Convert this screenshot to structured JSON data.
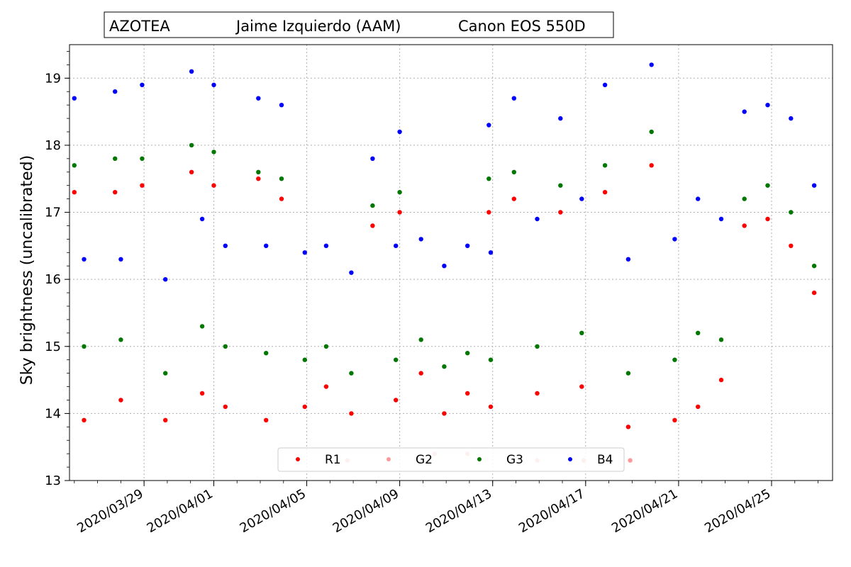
{
  "chart_data": {
    "type": "scatter",
    "title_parts": [
      "AZOTEA",
      "Jaime Izquierdo  (AAM)",
      "Canon EOS 550D"
    ],
    "xlabel": "",
    "ylabel": "Sky brightness (uncalibrated)",
    "x_tick_labels": [
      "2020/03/29",
      "2020/04/01",
      "2020/04/05",
      "2020/04/09",
      "2020/04/13",
      "2020/04/17",
      "2020/04/21",
      "2020/04/25"
    ],
    "x_ticks": [
      "2020-03-29",
      "2020-04-01",
      "2020-04-05",
      "2020-04-09",
      "2020-04-13",
      "2020-04-17",
      "2020-04-21",
      "2020-04-25"
    ],
    "xlim": [
      "2020-03-25T19:00",
      "2020-04-27T15:00"
    ],
    "ylim": [
      13,
      19.5
    ],
    "y_ticks": [
      13,
      14,
      15,
      16,
      17,
      18,
      19
    ],
    "grid": true,
    "legend_position": "bottom-center",
    "series": [
      {
        "name": "R1",
        "color": "#ff0000",
        "values": [
          [
            "2020-03-26T00:00",
            17.3
          ],
          [
            "2020-03-26T10:00",
            13.9
          ],
          [
            "2020-03-27T18:00",
            17.3
          ],
          [
            "2020-03-28T00:00",
            14.2
          ],
          [
            "2020-03-28T22:00",
            17.4
          ],
          [
            "2020-03-29T22:00",
            13.9
          ],
          [
            "2020-03-31T01:00",
            17.6
          ],
          [
            "2020-03-31T12:00",
            14.3
          ],
          [
            "2020-04-01T00:00",
            17.4
          ],
          [
            "2020-04-01T12:00",
            14.1
          ],
          [
            "2020-04-02T22:00",
            17.5
          ],
          [
            "2020-04-03T06:00",
            13.9
          ],
          [
            "2020-04-03T22:00",
            17.2
          ],
          [
            "2020-04-04T22:00",
            14.1
          ],
          [
            "2020-04-05T20:00",
            14.4
          ],
          [
            "2020-04-06T22:00",
            14.0
          ],
          [
            "2020-04-07T20:00",
            16.8
          ],
          [
            "2020-04-08T20:00",
            14.2
          ],
          [
            "2020-04-09T00:00",
            17.0
          ],
          [
            "2020-04-09T22:00",
            14.6
          ],
          [
            "2020-04-10T22:00",
            14.0
          ],
          [
            "2020-04-11T22:00",
            14.3
          ],
          [
            "2020-04-12T20:00",
            17.0
          ],
          [
            "2020-04-12T22:00",
            14.1
          ],
          [
            "2020-04-13T22:00",
            17.2
          ],
          [
            "2020-04-14T22:00",
            14.3
          ],
          [
            "2020-04-15T22:00",
            17.0
          ],
          [
            "2020-04-16T20:00",
            14.4
          ],
          [
            "2020-04-17T20:00",
            17.3
          ],
          [
            "2020-04-18T20:00",
            13.8
          ],
          [
            "2020-04-19T20:00",
            17.7
          ],
          [
            "2020-04-20T20:00",
            13.9
          ],
          [
            "2020-04-21T20:00",
            14.1
          ],
          [
            "2020-04-22T20:00",
            14.5
          ],
          [
            "2020-04-23T20:00",
            16.8
          ],
          [
            "2020-04-24T20:00",
            16.9
          ],
          [
            "2020-04-25T20:00",
            16.5
          ],
          [
            "2020-04-26T20:00",
            15.8
          ]
        ]
      },
      {
        "name": "G2",
        "color": "#ff9999",
        "values": [
          [
            "2020-04-06T18:00",
            13.3
          ],
          [
            "2020-04-10T12:00",
            13.4
          ],
          [
            "2020-04-11T22:00",
            13.4
          ],
          [
            "2020-04-14T22:00",
            13.3
          ],
          [
            "2020-04-16T22:00",
            13.3
          ],
          [
            "2020-04-18T22:00",
            13.3
          ]
        ]
      },
      {
        "name": "G3",
        "color": "#007700",
        "values": [
          [
            "2020-03-26T00:00",
            17.7
          ],
          [
            "2020-03-26T10:00",
            15.0
          ],
          [
            "2020-03-27T18:00",
            17.8
          ],
          [
            "2020-03-28T00:00",
            15.1
          ],
          [
            "2020-03-28T22:00",
            17.8
          ],
          [
            "2020-03-29T22:00",
            14.6
          ],
          [
            "2020-03-31T01:00",
            18.0
          ],
          [
            "2020-03-31T12:00",
            15.3
          ],
          [
            "2020-04-01T00:00",
            17.9
          ],
          [
            "2020-04-01T12:00",
            15.0
          ],
          [
            "2020-04-02T22:00",
            17.6
          ],
          [
            "2020-04-03T06:00",
            14.9
          ],
          [
            "2020-04-03T22:00",
            17.5
          ],
          [
            "2020-04-04T22:00",
            14.8
          ],
          [
            "2020-04-05T20:00",
            15.0
          ],
          [
            "2020-04-06T22:00",
            14.6
          ],
          [
            "2020-04-07T20:00",
            17.1
          ],
          [
            "2020-04-08T20:00",
            14.8
          ],
          [
            "2020-04-09T00:00",
            17.3
          ],
          [
            "2020-04-09T22:00",
            15.1
          ],
          [
            "2020-04-10T22:00",
            14.7
          ],
          [
            "2020-04-11T22:00",
            14.9
          ],
          [
            "2020-04-12T20:00",
            17.5
          ],
          [
            "2020-04-12T22:00",
            14.8
          ],
          [
            "2020-04-13T22:00",
            17.6
          ],
          [
            "2020-04-14T22:00",
            15.0
          ],
          [
            "2020-04-15T22:00",
            17.4
          ],
          [
            "2020-04-16T20:00",
            15.2
          ],
          [
            "2020-04-17T20:00",
            17.7
          ],
          [
            "2020-04-18T20:00",
            14.6
          ],
          [
            "2020-04-19T20:00",
            18.2
          ],
          [
            "2020-04-20T20:00",
            14.8
          ],
          [
            "2020-04-21T20:00",
            15.2
          ],
          [
            "2020-04-22T20:00",
            15.1
          ],
          [
            "2020-04-23T20:00",
            17.2
          ],
          [
            "2020-04-24T20:00",
            17.4
          ],
          [
            "2020-04-25T20:00",
            17.0
          ],
          [
            "2020-04-26T20:00",
            16.2
          ]
        ]
      },
      {
        "name": "B4",
        "color": "#0000ff",
        "values": [
          [
            "2020-03-26T00:00",
            18.7
          ],
          [
            "2020-03-26T10:00",
            16.3
          ],
          [
            "2020-03-27T18:00",
            18.8
          ],
          [
            "2020-03-28T00:00",
            16.3
          ],
          [
            "2020-03-28T22:00",
            18.9
          ],
          [
            "2020-03-29T22:00",
            16.0
          ],
          [
            "2020-03-31T01:00",
            19.1
          ],
          [
            "2020-03-31T12:00",
            16.9
          ],
          [
            "2020-04-01T00:00",
            18.9
          ],
          [
            "2020-04-01T12:00",
            16.5
          ],
          [
            "2020-04-02T22:00",
            18.7
          ],
          [
            "2020-04-03T06:00",
            16.5
          ],
          [
            "2020-04-03T22:00",
            18.6
          ],
          [
            "2020-04-04T22:00",
            16.4
          ],
          [
            "2020-04-05T20:00",
            16.5
          ],
          [
            "2020-04-06T22:00",
            16.1
          ],
          [
            "2020-04-07T20:00",
            17.8
          ],
          [
            "2020-04-08T20:00",
            16.5
          ],
          [
            "2020-04-09T00:00",
            18.2
          ],
          [
            "2020-04-09T22:00",
            16.6
          ],
          [
            "2020-04-10T22:00",
            16.2
          ],
          [
            "2020-04-11T22:00",
            16.5
          ],
          [
            "2020-04-12T20:00",
            18.3
          ],
          [
            "2020-04-12T22:00",
            16.4
          ],
          [
            "2020-04-13T22:00",
            18.7
          ],
          [
            "2020-04-14T22:00",
            16.9
          ],
          [
            "2020-04-15T22:00",
            18.4
          ],
          [
            "2020-04-16T20:00",
            17.2
          ],
          [
            "2020-04-17T20:00",
            18.9
          ],
          [
            "2020-04-18T20:00",
            16.3
          ],
          [
            "2020-04-19T20:00",
            19.2
          ],
          [
            "2020-04-20T20:00",
            16.6
          ],
          [
            "2020-04-21T20:00",
            17.2
          ],
          [
            "2020-04-22T20:00",
            16.9
          ],
          [
            "2020-04-23T20:00",
            18.5
          ],
          [
            "2020-04-24T20:00",
            18.6
          ],
          [
            "2020-04-25T20:00",
            18.4
          ],
          [
            "2020-04-26T20:00",
            17.4
          ]
        ]
      }
    ]
  }
}
